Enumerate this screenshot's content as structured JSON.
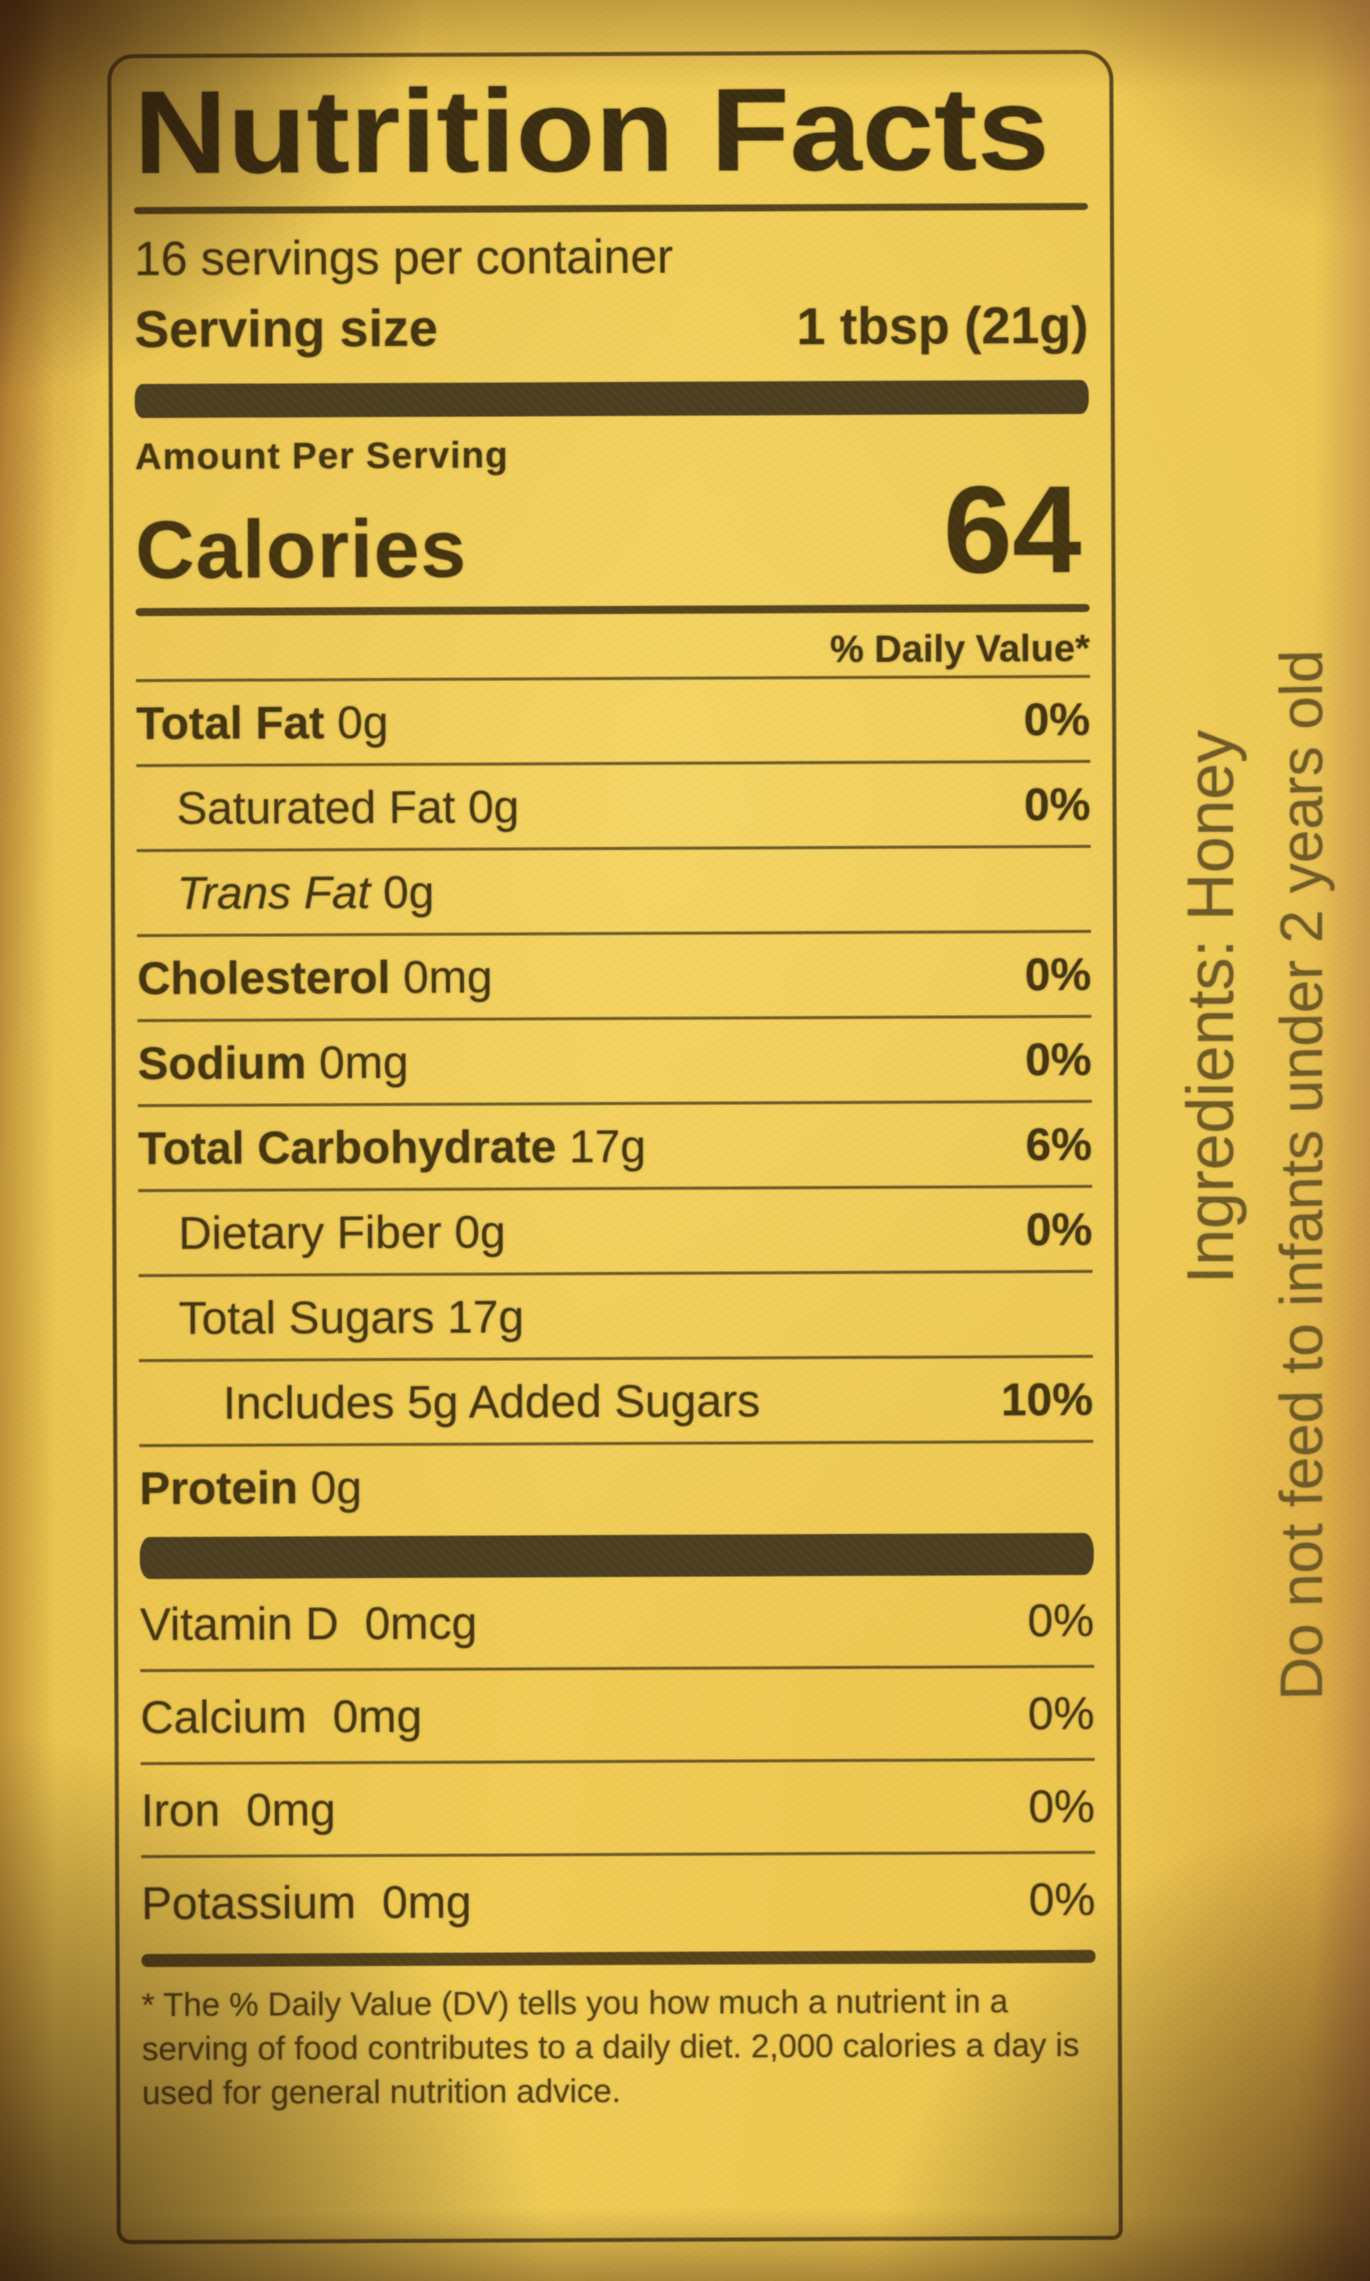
{
  "label": {
    "title": "Nutrition Facts",
    "servings_per_container": "16 servings per container",
    "serving_size_label": "Serving size",
    "serving_size_value": "1 tbsp (21g)",
    "amount_per_serving": "Amount Per Serving",
    "calories_label": "Calories",
    "calories_value": "64",
    "daily_value_header": "% Daily Value*",
    "nutrients": [
      {
        "name": "Total Fat",
        "amount": "0g",
        "dv": "0%",
        "bold": true,
        "italic": false,
        "indent": 0
      },
      {
        "name": "Saturated Fat",
        "amount": "0g",
        "dv": "0%",
        "bold": false,
        "italic": false,
        "indent": 1
      },
      {
        "name": "Trans Fat",
        "amount": "0g",
        "dv": "",
        "bold": false,
        "italic": true,
        "indent": 1
      },
      {
        "name": "Cholesterol",
        "amount": "0mg",
        "dv": "0%",
        "bold": true,
        "italic": false,
        "indent": 0
      },
      {
        "name": "Sodium",
        "amount": "0mg",
        "dv": "0%",
        "bold": true,
        "italic": false,
        "indent": 0
      },
      {
        "name": "Total Carbohydrate",
        "amount": "17g",
        "dv": "6%",
        "bold": true,
        "italic": false,
        "indent": 0
      },
      {
        "name": "Dietary Fiber",
        "amount": "0g",
        "dv": "0%",
        "bold": false,
        "italic": false,
        "indent": 1
      },
      {
        "name": "Total Sugars",
        "amount": "17g",
        "dv": "",
        "bold": false,
        "italic": false,
        "indent": 1
      },
      {
        "name": "Includes 5g Added Sugars",
        "amount": "",
        "dv": "10%",
        "bold": false,
        "italic": false,
        "indent": 2
      },
      {
        "name": "Protein",
        "amount": "0g",
        "dv": "",
        "bold": true,
        "italic": false,
        "indent": 0
      }
    ],
    "micronutrients": [
      {
        "name": "Vitamin D",
        "amount": "0mcg",
        "dv": "0%"
      },
      {
        "name": "Calcium",
        "amount": "0mg",
        "dv": "0%"
      },
      {
        "name": "Iron",
        "amount": "0mg",
        "dv": "0%"
      },
      {
        "name": "Potassium",
        "amount": "0mg",
        "dv": "0%"
      }
    ],
    "footnote": "* The % Daily Value (DV) tells you how much a nutrient in a serving of food contributes to a daily diet. 2,000 calories a day is used for general nutrition advice."
  },
  "side_text": {
    "ingredients": "Ingredients: Honey",
    "warning": "Do not feed to infants under 2 years old"
  },
  "colors": {
    "label_yellow": "#f0cc55",
    "ink": "#43340f",
    "bar": "#4a3d20",
    "side_ink": "#6e5a26"
  }
}
